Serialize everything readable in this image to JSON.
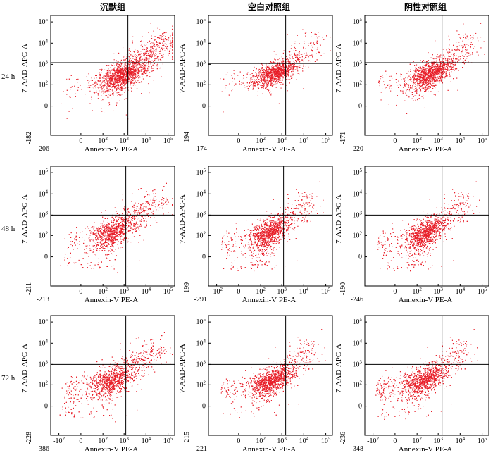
{
  "figure": {
    "column_titles": [
      "沉默组",
      "空白对照组",
      "阴性对照组"
    ],
    "row_labels": [
      "24 h",
      "48 h",
      "72 h"
    ],
    "colors": {
      "dots": "#e8202a",
      "axis": "#000000",
      "background": "#ffffff"
    }
  },
  "chart_data": [
    {
      "type": "scatter",
      "panel": "沉默组 24 h",
      "xlabel": "Annexin-V PE-A",
      "ylabel": "7-AAD-APC-A",
      "xmin_label": "-206",
      "ymin_label": "-182",
      "x_tick_labels": [
        "0",
        "10^2",
        "10^3",
        "10^4",
        "10^5"
      ],
      "y_tick_labels": [
        "0",
        "10^2",
        "10^3",
        "10^4",
        "10^5"
      ],
      "x_gate": 1500,
      "y_gate": 1200,
      "cluster_center": [
        700,
        300
      ],
      "cluster_spread": [
        0.5,
        0.35
      ],
      "tail_strength": 0.35
    },
    {
      "type": "scatter",
      "panel": "空白对照组 24 h",
      "xlabel": "Annexin-V PE-A",
      "ylabel": "7-AAD-APC-A",
      "xmin_label": "-174",
      "ymin_label": "-194",
      "x_tick_labels": [
        "0",
        "10^2",
        "10^3",
        "10^4",
        "10^5"
      ],
      "y_tick_labels": [
        "0",
        "10^2",
        "10^3",
        "10^4",
        "10^5"
      ],
      "x_gate": 1500,
      "y_gate": 1100,
      "cluster_center": [
        500,
        400
      ],
      "cluster_spread": [
        0.45,
        0.3
      ],
      "tail_strength": 0.15
    },
    {
      "type": "scatter",
      "panel": "阴性对照组 24 h",
      "xlabel": "Annexin-V PE-A",
      "ylabel": "7-AAD-APC-A",
      "xmin_label": "-220",
      "ymin_label": "-171",
      "x_tick_labels": [
        "0",
        "10^2",
        "10^3",
        "10^4",
        "10^5"
      ],
      "y_tick_labels": [
        "0",
        "10^2",
        "10^3",
        "10^4",
        "10^5"
      ],
      "x_gate": 1500,
      "y_gate": 1200,
      "cluster_center": [
        400,
        350
      ],
      "cluster_spread": [
        0.45,
        0.35
      ],
      "tail_strength": 0.2
    },
    {
      "type": "scatter",
      "panel": "沉默组 48 h",
      "xlabel": "Annexin-V PE-A",
      "ylabel": "7-AAD-APC-A",
      "xmin_label": "-213",
      "ymin_label": "-211",
      "x_tick_labels": [
        "0",
        "10^2",
        "10^3",
        "10^4",
        "10^5"
      ],
      "y_tick_labels": [
        "0",
        "10^2",
        "10^3",
        "10^4",
        "10^5"
      ],
      "x_gate": 1200,
      "y_gate": 1000,
      "cluster_center": [
        250,
        150
      ],
      "cluster_spread": [
        0.4,
        0.35
      ],
      "tail_strength": 0.4
    },
    {
      "type": "scatter",
      "panel": "空白对照组 48 h",
      "xlabel": "Annexin-V PE-A",
      "ylabel": "7-AAD-APC-A",
      "xmin_label": "-291",
      "ymin_label": "-199",
      "x_tick_labels": [
        "-10^2",
        "0",
        "10^2",
        "10^3",
        "10^4",
        "10^5"
      ],
      "y_tick_labels": [
        "0",
        "10^2",
        "10^3",
        "10^4",
        "10^5"
      ],
      "x_gate": 1200,
      "y_gate": 1000,
      "cluster_center": [
        250,
        150
      ],
      "cluster_spread": [
        0.4,
        0.35
      ],
      "tail_strength": 0.2
    },
    {
      "type": "scatter",
      "panel": "阴性对照组 48 h",
      "xlabel": "Annexin-V PE-A",
      "ylabel": "7-AAD-APC-A",
      "xmin_label": "-246",
      "ymin_label": "-190",
      "x_tick_labels": [
        "0",
        "10^2",
        "10^3",
        "10^4",
        "10^5"
      ],
      "y_tick_labels": [
        "0",
        "10^2",
        "10^3",
        "10^4",
        "10^5"
      ],
      "x_gate": 1500,
      "y_gate": 1000,
      "cluster_center": [
        250,
        150
      ],
      "cluster_spread": [
        0.4,
        0.35
      ],
      "tail_strength": 0.2
    },
    {
      "type": "scatter",
      "panel": "沉默组 72 h",
      "xlabel": "Annexin-V PE-A",
      "ylabel": "7-AAD-APC-A",
      "xmin_label": "-386",
      "ymin_label": "-228",
      "x_tick_labels": [
        "-10^2",
        "0",
        "10^2",
        "10^3",
        "10^4",
        "10^5"
      ],
      "y_tick_labels": [
        "0",
        "10^2",
        "10^3",
        "10^4",
        "10^5"
      ],
      "x_gate": 1200,
      "y_gate": 1000,
      "cluster_center": [
        200,
        150
      ],
      "cluster_spread": [
        0.45,
        0.35
      ],
      "tail_strength": 0.4
    },
    {
      "type": "scatter",
      "panel": "空白对照组 72 h",
      "xlabel": "Annexin-V PE-A",
      "ylabel": "7-AAD-APC-A",
      "xmin_label": "-221",
      "ymin_label": "-215",
      "x_tick_labels": [
        "0",
        "10^2",
        "10^3",
        "10^4",
        "10^5"
      ],
      "y_tick_labels": [
        "0",
        "10^2",
        "10^3",
        "10^4",
        "10^5"
      ],
      "x_gate": 1500,
      "y_gate": 1000,
      "cluster_center": [
        300,
        180
      ],
      "cluster_spread": [
        0.45,
        0.3
      ],
      "tail_strength": 0.2
    },
    {
      "type": "scatter",
      "panel": "阴性对照组 72 h",
      "xlabel": "Annexin-V PE-A",
      "ylabel": "7-AAD-APC-A",
      "xmin_label": "-348",
      "ymin_label": "-236",
      "x_tick_labels": [
        "-10^2",
        "0",
        "10^2",
        "10^3",
        "10^4",
        "10^5"
      ],
      "y_tick_labels": [
        "0",
        "10^2",
        "10^3",
        "10^4",
        "10^5"
      ],
      "x_gate": 1500,
      "y_gate": 1000,
      "cluster_center": [
        200,
        180
      ],
      "cluster_spread": [
        0.45,
        0.35
      ],
      "tail_strength": 0.2
    }
  ]
}
